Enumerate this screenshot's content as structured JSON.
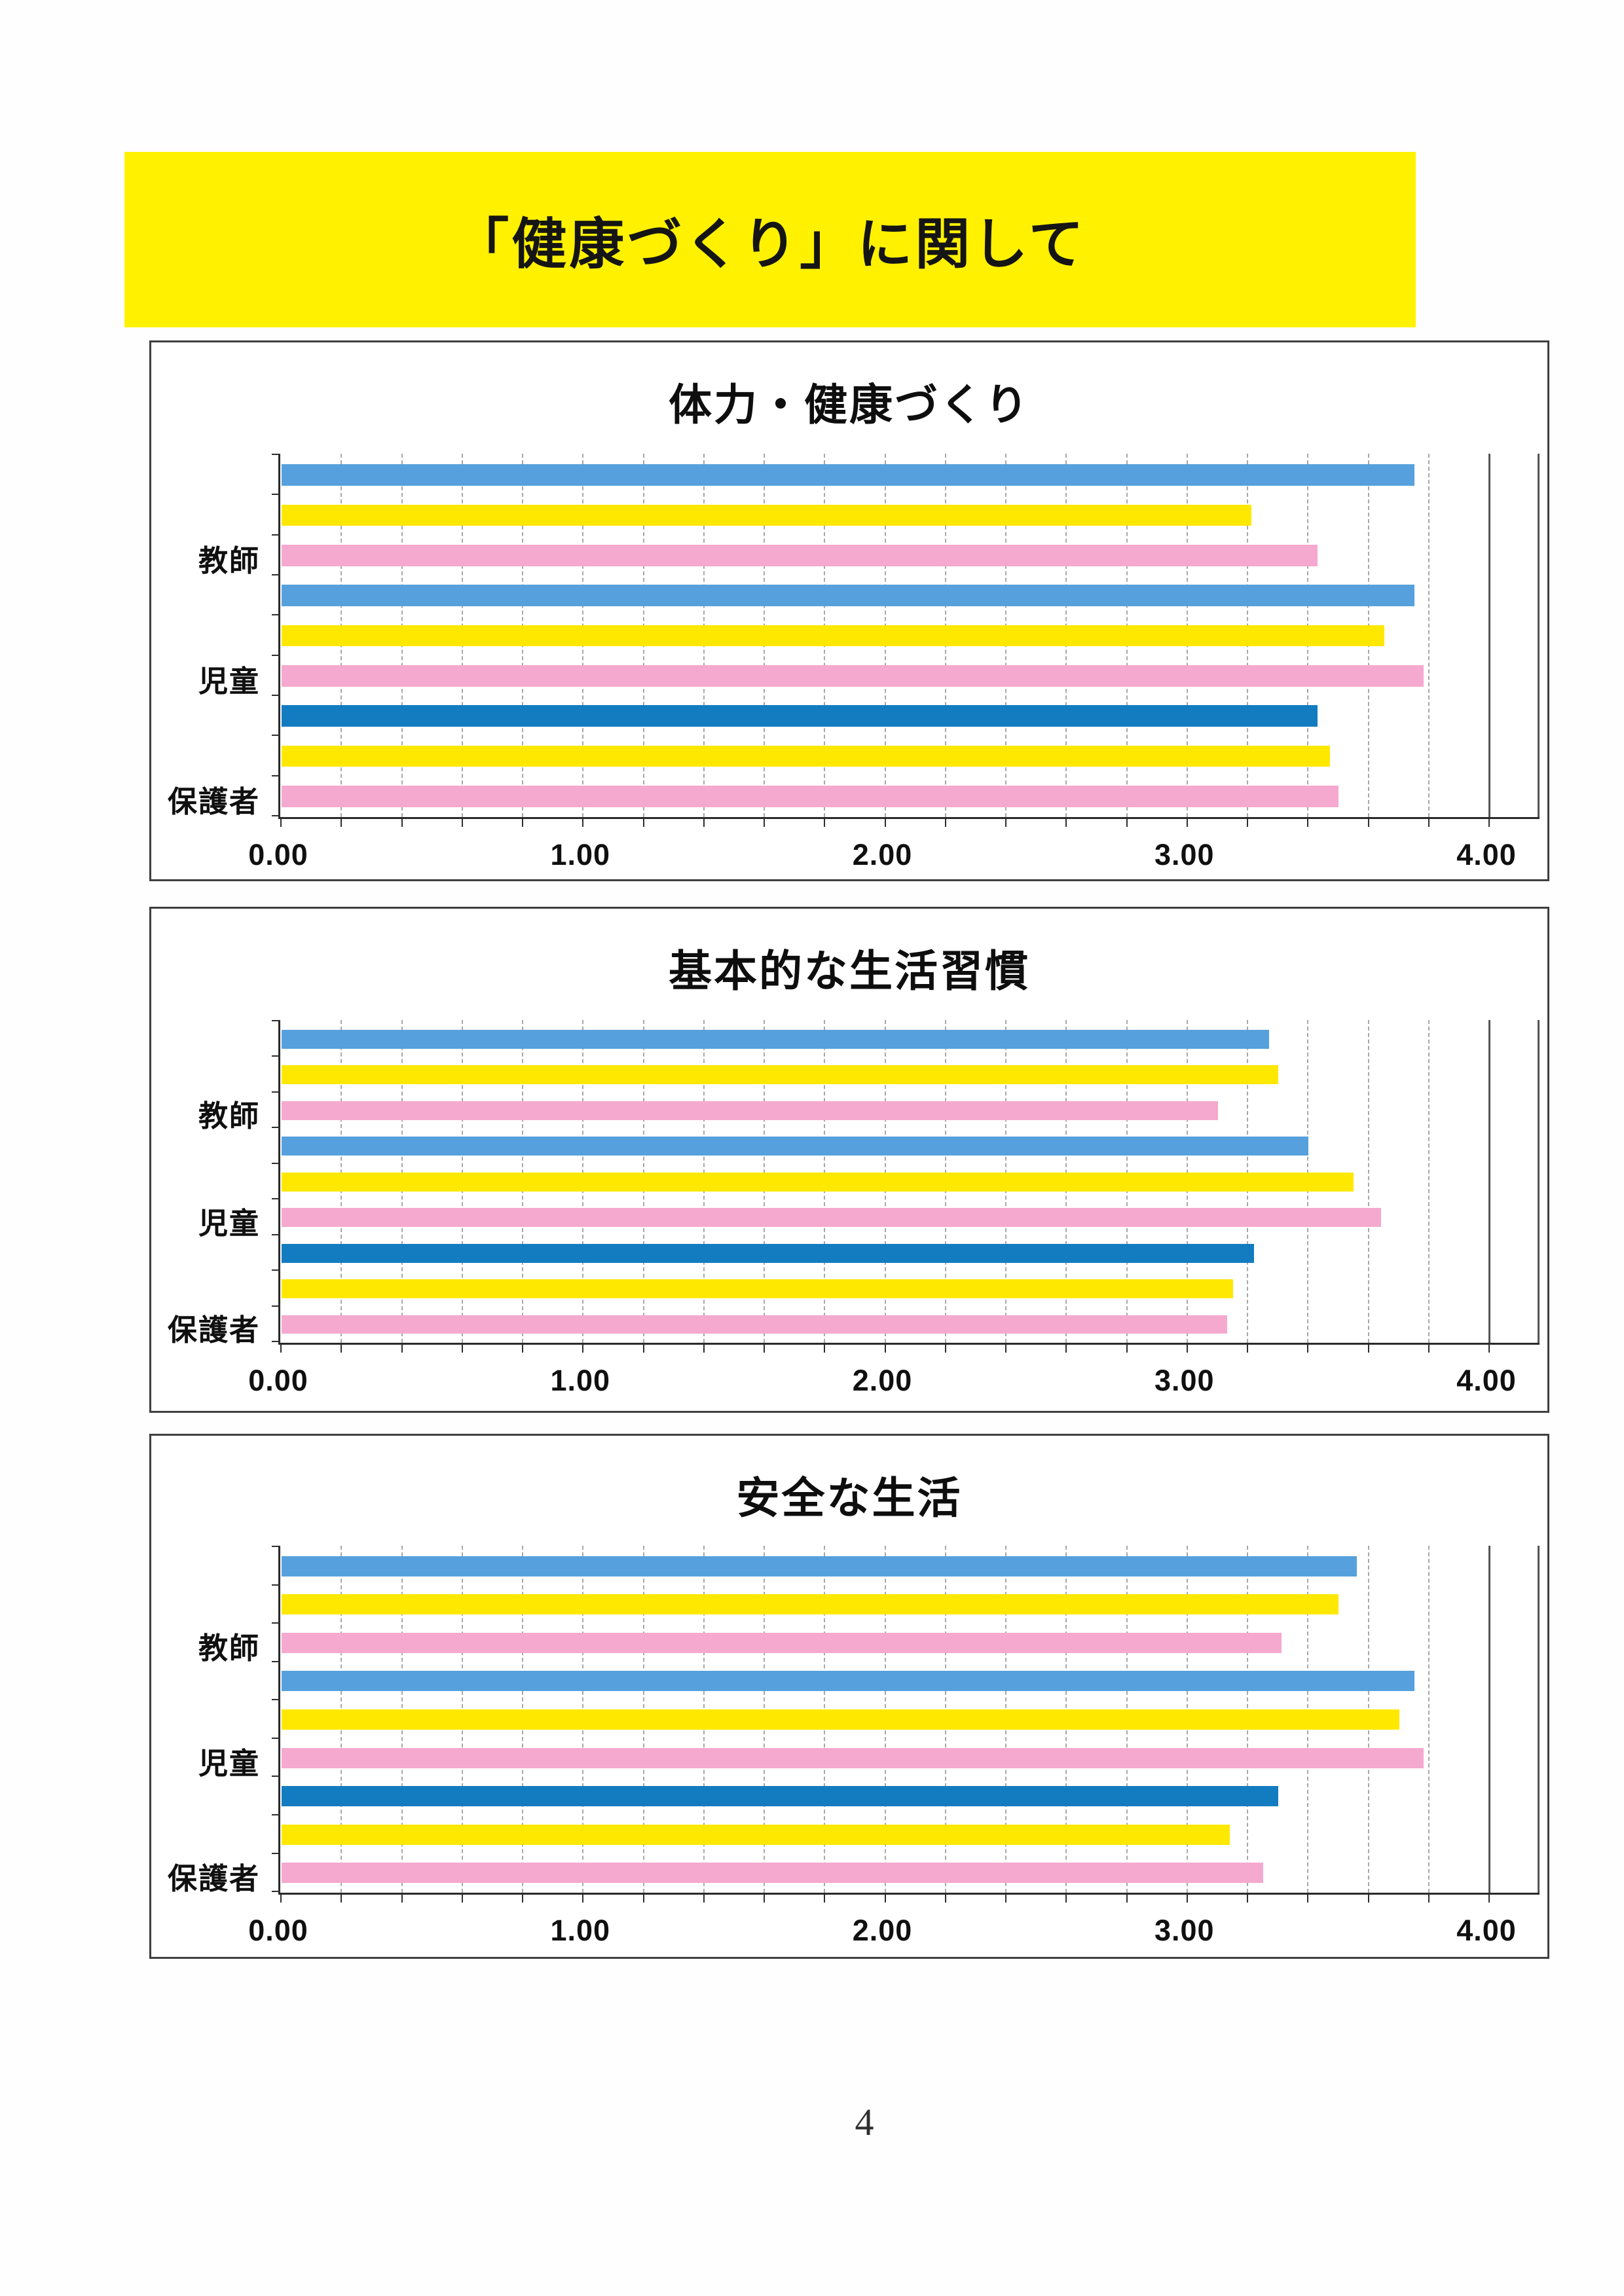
{
  "page": {
    "title": "「健康づくり」に関して",
    "page_number": "4"
  },
  "colors": {
    "banner_yellow": "#FFF100",
    "bar_blue": "#56A1DD",
    "bar_blue_dark": "#137CC0",
    "bar_yellow": "#FFE800",
    "bar_pink": "#F5A9CF",
    "dark_blue_category_index": 2,
    "gridline": "#505050",
    "axis_line": "#2a2a2a",
    "text": "#141414"
  },
  "categories": [
    "教師",
    "児童",
    "保護者"
  ],
  "category_keys": [
    "teachers",
    "children",
    "guardians"
  ],
  "axis": {
    "ticks": [
      "0.00",
      "1.00",
      "2.00",
      "3.00",
      "4.00"
    ],
    "min": 0,
    "max": 4,
    "minor_step": 0.2
  },
  "chart_data": [
    {
      "type": "bar",
      "orientation": "horizontal",
      "title": "体力・健康づくり",
      "categories": [
        "教師",
        "児童",
        "保護者"
      ],
      "series": [
        {
          "key": "blue",
          "values": [
            3.75,
            3.75,
            3.43
          ]
        },
        {
          "key": "yellow",
          "values": [
            3.21,
            3.65,
            3.47
          ]
        },
        {
          "key": "pink",
          "values": [
            3.43,
            3.78,
            3.5
          ]
        }
      ],
      "xlabel": "",
      "ylabel": "",
      "xlim": [
        0,
        4
      ],
      "xticks": [
        "0.00",
        "1.00",
        "2.00",
        "3.00",
        "4.00"
      ],
      "grid": true,
      "legend": false
    },
    {
      "type": "bar",
      "orientation": "horizontal",
      "title": "基本的な生活習慣",
      "categories": [
        "教師",
        "児童",
        "保護者"
      ],
      "series": [
        {
          "key": "blue",
          "values": [
            3.27,
            3.4,
            3.22
          ]
        },
        {
          "key": "yellow",
          "values": [
            3.3,
            3.55,
            3.15
          ]
        },
        {
          "key": "pink",
          "values": [
            3.1,
            3.64,
            3.13
          ]
        }
      ],
      "xlabel": "",
      "ylabel": "",
      "xlim": [
        0,
        4
      ],
      "xticks": [
        "0.00",
        "1.00",
        "2.00",
        "3.00",
        "4.00"
      ],
      "grid": true,
      "legend": false
    },
    {
      "type": "bar",
      "orientation": "horizontal",
      "title": "安全な生活",
      "categories": [
        "教師",
        "児童",
        "保護者"
      ],
      "series": [
        {
          "key": "blue",
          "values": [
            3.56,
            3.75,
            3.3
          ]
        },
        {
          "key": "yellow",
          "values": [
            3.5,
            3.7,
            3.14
          ]
        },
        {
          "key": "pink",
          "values": [
            3.31,
            3.78,
            3.25
          ]
        }
      ],
      "xlabel": "",
      "ylabel": "",
      "xlim": [
        0,
        4
      ],
      "xticks": [
        "0.00",
        "1.00",
        "2.00",
        "3.00",
        "4.00"
      ],
      "grid": true,
      "legend": false
    }
  ]
}
